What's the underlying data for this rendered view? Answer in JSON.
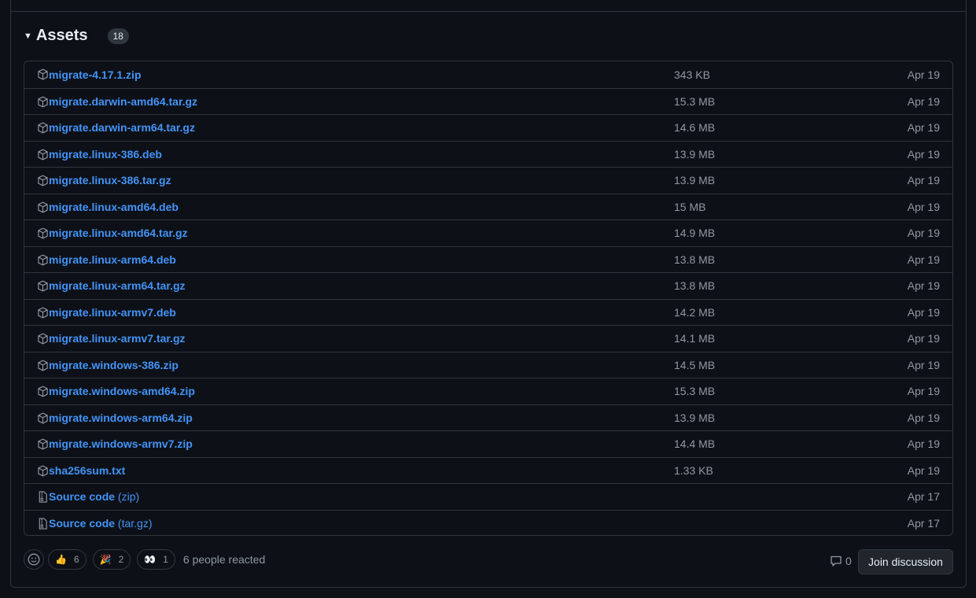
{
  "assets": {
    "title": "Assets",
    "count": "18",
    "items": [
      {
        "name": "migrate-4.17.1.zip",
        "size": "343 KB",
        "date": "Apr 19",
        "icon": "package-icon"
      },
      {
        "name": "migrate.darwin-amd64.tar.gz",
        "size": "15.3 MB",
        "date": "Apr 19",
        "icon": "package-icon"
      },
      {
        "name": "migrate.darwin-arm64.tar.gz",
        "size": "14.6 MB",
        "date": "Apr 19",
        "icon": "package-icon"
      },
      {
        "name": "migrate.linux-386.deb",
        "size": "13.9 MB",
        "date": "Apr 19",
        "icon": "package-icon"
      },
      {
        "name": "migrate.linux-386.tar.gz",
        "size": "13.9 MB",
        "date": "Apr 19",
        "icon": "package-icon"
      },
      {
        "name": "migrate.linux-amd64.deb",
        "size": "15 MB",
        "date": "Apr 19",
        "icon": "package-icon"
      },
      {
        "name": "migrate.linux-amd64.tar.gz",
        "size": "14.9 MB",
        "date": "Apr 19",
        "icon": "package-icon"
      },
      {
        "name": "migrate.linux-arm64.deb",
        "size": "13.8 MB",
        "date": "Apr 19",
        "icon": "package-icon"
      },
      {
        "name": "migrate.linux-arm64.tar.gz",
        "size": "13.8 MB",
        "date": "Apr 19",
        "icon": "package-icon"
      },
      {
        "name": "migrate.linux-armv7.deb",
        "size": "14.2 MB",
        "date": "Apr 19",
        "icon": "package-icon"
      },
      {
        "name": "migrate.linux-armv7.tar.gz",
        "size": "14.1 MB",
        "date": "Apr 19",
        "icon": "package-icon"
      },
      {
        "name": "migrate.windows-386.zip",
        "size": "14.5 MB",
        "date": "Apr 19",
        "icon": "package-icon"
      },
      {
        "name": "migrate.windows-amd64.zip",
        "size": "15.3 MB",
        "date": "Apr 19",
        "icon": "package-icon"
      },
      {
        "name": "migrate.windows-arm64.zip",
        "size": "13.9 MB",
        "date": "Apr 19",
        "icon": "package-icon"
      },
      {
        "name": "migrate.windows-armv7.zip",
        "size": "14.4 MB",
        "date": "Apr 19",
        "icon": "package-icon"
      },
      {
        "name": "sha256sum.txt",
        "size": "1.33 KB",
        "date": "Apr 19",
        "icon": "package-icon"
      },
      {
        "name": "Source code",
        "sub": "(zip)",
        "size": "",
        "date": "Apr 17",
        "icon": "file-zip-icon"
      },
      {
        "name": "Source code",
        "sub": "(tar.gz)",
        "size": "",
        "date": "Apr 17",
        "icon": "file-zip-icon"
      }
    ]
  },
  "reactions": {
    "items": [
      {
        "emoji": "👍",
        "count": "6",
        "icon": "thumbs-up-icon"
      },
      {
        "emoji": "🎉",
        "count": "2",
        "icon": "tada-icon"
      },
      {
        "emoji": "👀",
        "count": "1",
        "icon": "eyes-icon"
      }
    ],
    "summary": "6 people reacted"
  },
  "comments_count": "0",
  "join_label": "Join discussion",
  "colors": {
    "background": "#0d1117",
    "link": "#4493f8",
    "border": "#30363d",
    "muted": "#9198a1"
  }
}
